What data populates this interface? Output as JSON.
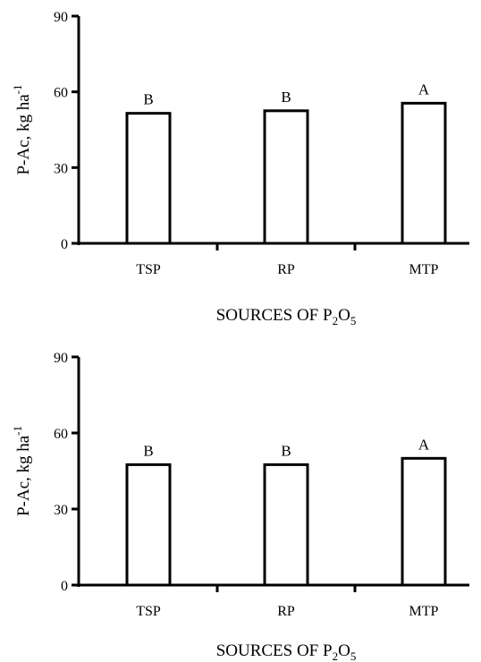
{
  "chart_data": [
    {
      "type": "bar",
      "categories": [
        "TSP",
        "RP",
        "MTP"
      ],
      "values": [
        51.5,
        52.5,
        55.5
      ],
      "data_labels": [
        "B",
        "B",
        "A"
      ],
      "ylabel": "P-Ac, kg ha",
      "ylabel_sup": "-1",
      "xlabel_main": "SOURCES OF P",
      "xlabel_sub1": "2",
      "xlabel_mid": "O",
      "xlabel_sub2": "5",
      "ylim": [
        0,
        90
      ],
      "yticks": [
        0,
        30,
        60,
        90
      ]
    },
    {
      "type": "bar",
      "categories": [
        "TSP",
        "RP",
        "MTP"
      ],
      "values": [
        47.5,
        47.5,
        50
      ],
      "data_labels": [
        "B",
        "B",
        "A"
      ],
      "ylabel": "P-Ac, kg ha",
      "ylabel_sup": "-1",
      "xlabel_main": "SOURCES OF P",
      "xlabel_sub1": "2",
      "xlabel_mid": "O",
      "xlabel_sub2": "5",
      "ylim": [
        0,
        90
      ],
      "yticks": [
        0,
        30,
        60,
        90
      ]
    }
  ]
}
